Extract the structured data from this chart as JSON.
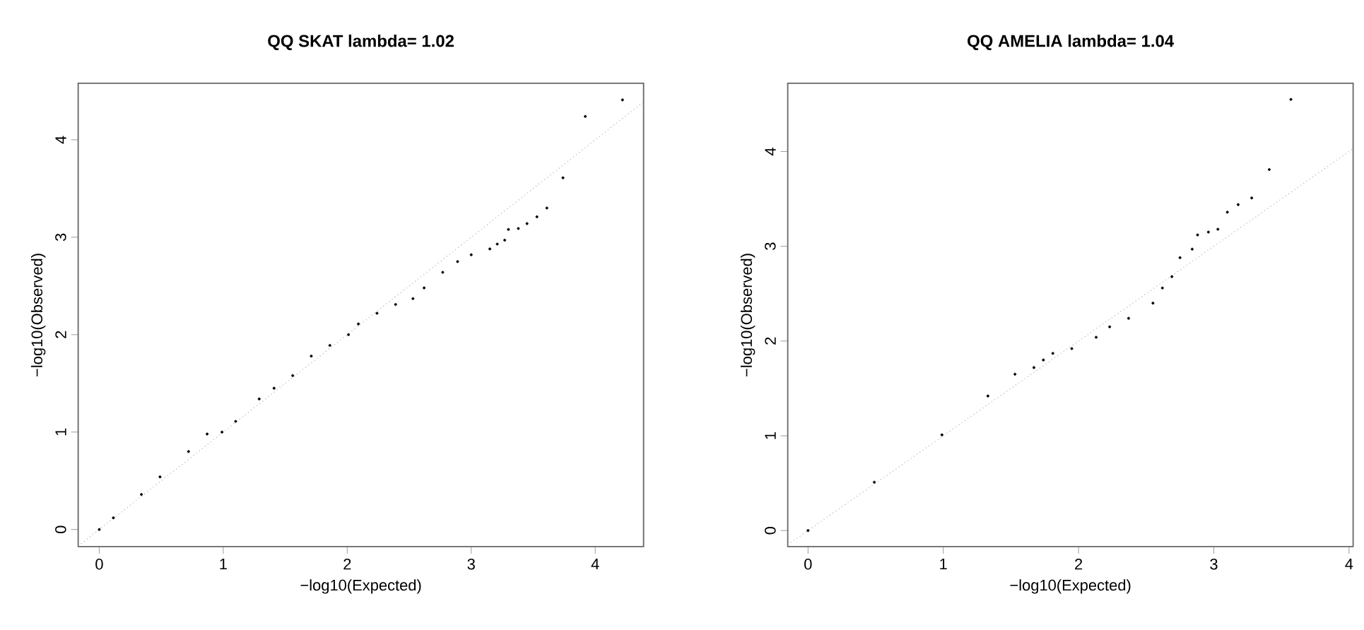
{
  "chart_data": [
    {
      "type": "scatter",
      "title": "QQ SKAT lambda= 1.02",
      "xlabel": "−log10(Expected)",
      "ylabel": "−log10(Observed)",
      "xlim": [
        -0.17,
        4.39
      ],
      "ylim": [
        -0.176,
        4.58
      ],
      "xticks": [
        0,
        1,
        2,
        3,
        4
      ],
      "yticks": [
        0,
        1,
        2,
        3,
        4
      ],
      "series": [
        {
          "type": "line",
          "color": "#b0b0b0",
          "line_style": "dotted",
          "marker": "none",
          "x": [
            -0.17,
            4.39
          ],
          "values": [
            -0.17,
            4.39
          ]
        },
        {
          "color": "#000000",
          "marker": "circle",
          "x": [
            0,
            0.114,
            0.34,
            0.49,
            0.72,
            0.87,
            0.99,
            1.1,
            1.29,
            1.41,
            1.56,
            1.71,
            1.86,
            2.01,
            2.09,
            2.24,
            2.39,
            2.53,
            2.62,
            2.77,
            2.89,
            3.0,
            3.15,
            3.21,
            3.27,
            3.3,
            3.38,
            3.45,
            3.53,
            3.61,
            3.74,
            3.92,
            4.22
          ],
          "values": [
            0,
            0.12,
            0.36,
            0.54,
            0.8,
            0.98,
            1.0,
            1.11,
            1.34,
            1.45,
            1.58,
            1.78,
            1.89,
            2.0,
            2.11,
            2.22,
            2.31,
            2.37,
            2.48,
            2.64,
            2.75,
            2.82,
            2.88,
            2.93,
            2.97,
            3.08,
            3.09,
            3.14,
            3.21,
            3.3,
            3.61,
            4.24,
            4.41
          ]
        }
      ]
    },
    {
      "type": "scatter",
      "title": "QQ AMELIA lambda= 1.04",
      "xlabel": "−log10(Expected)",
      "ylabel": "−log10(Observed)",
      "xlim": [
        -0.15,
        4.03
      ],
      "ylim": [
        -0.17,
        4.72
      ],
      "xticks": [
        0,
        1,
        2,
        3,
        4
      ],
      "yticks": [
        0,
        1,
        2,
        3,
        4
      ],
      "series": [
        {
          "type": "line",
          "color": "#b0b0b0",
          "line_style": "dotted",
          "marker": "none",
          "x": [
            -0.15,
            4.03
          ],
          "values": [
            -0.15,
            4.03
          ]
        },
        {
          "color": "#000000",
          "marker": "circle",
          "x": [
            0,
            0.49,
            0.99,
            1.33,
            1.53,
            1.67,
            1.74,
            1.81,
            1.95,
            2.13,
            2.23,
            2.37,
            2.55,
            2.62,
            2.69,
            2.75,
            2.84,
            2.88,
            2.96,
            3.03,
            3.1,
            3.18,
            3.28,
            3.41,
            3.57
          ],
          "values": [
            0,
            0.51,
            1.01,
            1.42,
            1.65,
            1.72,
            1.8,
            1.87,
            1.92,
            2.04,
            2.15,
            2.24,
            2.4,
            2.56,
            2.68,
            2.88,
            2.97,
            3.12,
            3.15,
            3.18,
            3.36,
            3.44,
            3.51,
            3.81,
            4.55
          ]
        }
      ]
    }
  ]
}
